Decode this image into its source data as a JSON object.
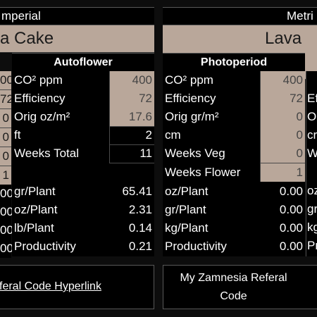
{
  "left_panel": {
    "header": "mperial",
    "strain": "a Cake",
    "mode": "Autoflower",
    "edge_values": [
      "00",
      "72",
      "0",
      "0",
      "0",
      "1",
      "00",
      "00",
      "00",
      "00"
    ],
    "rows": [
      {
        "label": "CO² ppm",
        "value": "400"
      },
      {
        "label": "Efficiency",
        "value": "72"
      },
      {
        "label": "Orig oz/m²",
        "value": "17.6"
      },
      {
        "label": "ft",
        "value": "2"
      },
      {
        "label": "Weeks Total",
        "value": "11"
      }
    ],
    "results": [
      {
        "label": "gr/Plant",
        "value": "65.41"
      },
      {
        "label": "oz/Plant",
        "value": "2.31"
      },
      {
        "label": "lb/Plant",
        "value": "0.14"
      },
      {
        "label": "Productivity",
        "value": "0.21"
      }
    ],
    "link_button": "feral Code Hyperlink"
  },
  "right_panel": {
    "header": "Metri",
    "strain": "Lava C",
    "mode": "Photoperiod",
    "rows": [
      {
        "label": "CO² ppm",
        "value": "400"
      },
      {
        "label": "Efficiency",
        "value": "72"
      },
      {
        "label": "Orig gr/m²",
        "value": "0"
      },
      {
        "label": "cm",
        "value": "0"
      },
      {
        "label": "Weeks Veg",
        "value": "0"
      },
      {
        "label": "Weeks Flower",
        "value": "1"
      }
    ],
    "results": [
      {
        "label": "oz/Plant",
        "value": "0.00"
      },
      {
        "label": "gr/Plant",
        "value": "0.00"
      },
      {
        "label": "kg/Plant",
        "value": "0.00"
      },
      {
        "label": "Productivity",
        "value": "0.00"
      }
    ],
    "edge_labels": [
      "",
      "Ef",
      "O",
      "cr",
      "W",
      "",
      "oz",
      "gr",
      "kg",
      "Pr"
    ],
    "referral_button_line1": "My Zamnesia Referal",
    "referral_button_line2": "Code"
  },
  "colors": {
    "accent_tan": "#b9a79a",
    "background": "#0d0d0d",
    "cell_bg": "#000000"
  }
}
